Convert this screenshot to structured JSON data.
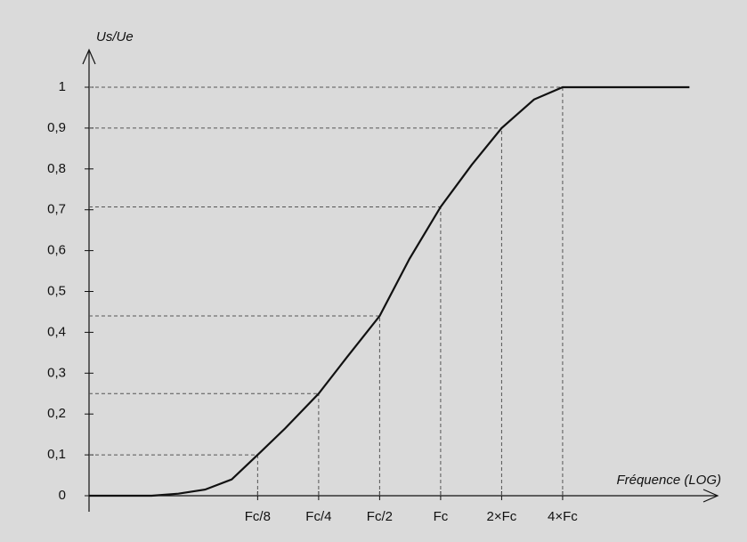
{
  "chart_data": {
    "type": "line",
    "ylabel": "Us/Ue",
    "xlabel": "Fréquence (LOG)",
    "xscale": "log",
    "x": [
      0.0184,
      0.0375,
      0.0508,
      0.0688,
      0.0931,
      0.125,
      0.171,
      0.25,
      0.346,
      0.5,
      0.702,
      1,
      1.424,
      2,
      2.89,
      4,
      16.9
    ],
    "series": [
      {
        "color": "#111111",
        "values": [
          0,
          0,
          0.005,
          0.015,
          0.04,
          0.1,
          0.165,
          0.25,
          0.34,
          0.44,
          0.58,
          0.707,
          0.81,
          0.9,
          0.97,
          1,
          1
        ]
      }
    ],
    "xlim": [
      0.0184,
      20
    ],
    "xticks": [
      {
        "value": 0.125,
        "label": "Fc/8"
      },
      {
        "value": 0.25,
        "label": "Fc/4"
      },
      {
        "value": 0.5,
        "label": "Fc/2"
      },
      {
        "value": 1,
        "label": "Fc"
      },
      {
        "value": 2,
        "label": "2×Fc"
      },
      {
        "value": 4,
        "label": "4×Fc"
      }
    ],
    "ylim": [
      0,
      1
    ],
    "yticks": [
      0,
      {
        "value": 0.1,
        "label": "0,1"
      },
      {
        "value": 0.2,
        "label": "0,2"
      },
      {
        "value": 0.3,
        "label": "0,3"
      },
      {
        "value": 0.4,
        "label": "0,4"
      },
      {
        "value": 0.5,
        "label": "0,5"
      },
      {
        "value": 0.6,
        "label": "0,6"
      },
      {
        "value": 0.7,
        "label": "0,7"
      },
      {
        "value": 0.8,
        "label": "0,8"
      },
      {
        "value": 0.9,
        "label": "0,9"
      },
      1
    ]
  }
}
